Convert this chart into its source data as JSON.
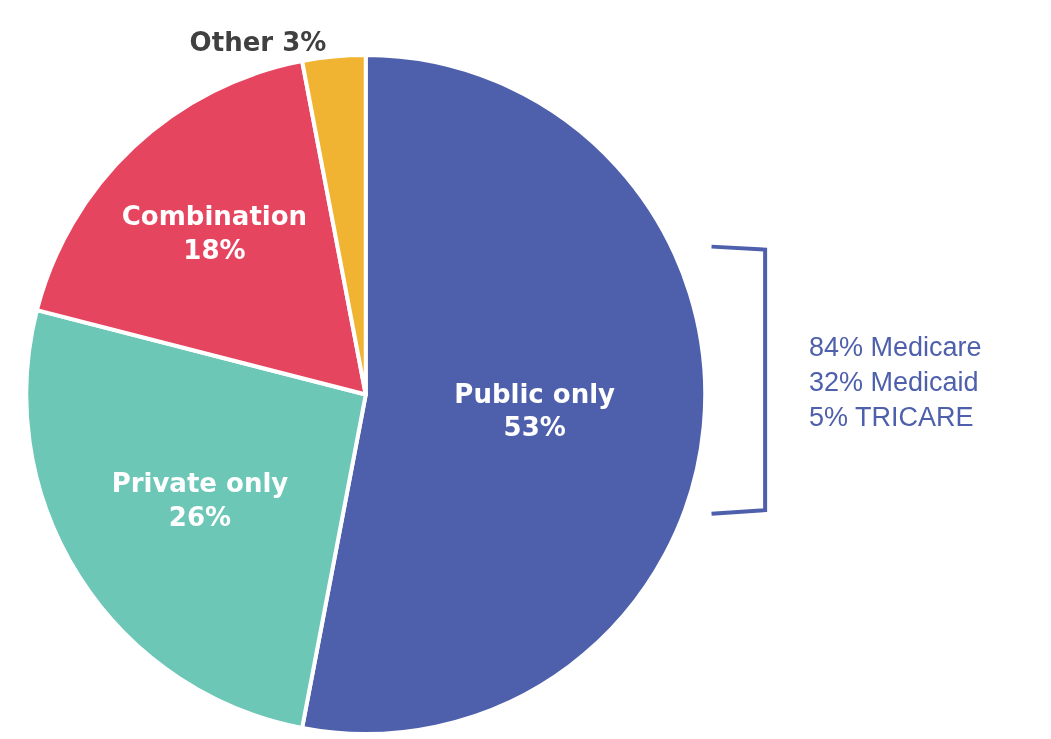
{
  "chart_data": {
    "type": "pie",
    "categories": [
      "Public only",
      "Private only",
      "Combination",
      "Other"
    ],
    "values": [
      53,
      26,
      18,
      3
    ],
    "value_labels": [
      "53%",
      "26%",
      "18%",
      "3%"
    ],
    "colors": [
      "#4e60ab",
      "#6cc7b7",
      "#e64560",
      "#f0b432"
    ],
    "annotations": [
      "84% Medicare",
      "32% Medicaid",
      "5% TRICARE"
    ],
    "legend": false
  }
}
